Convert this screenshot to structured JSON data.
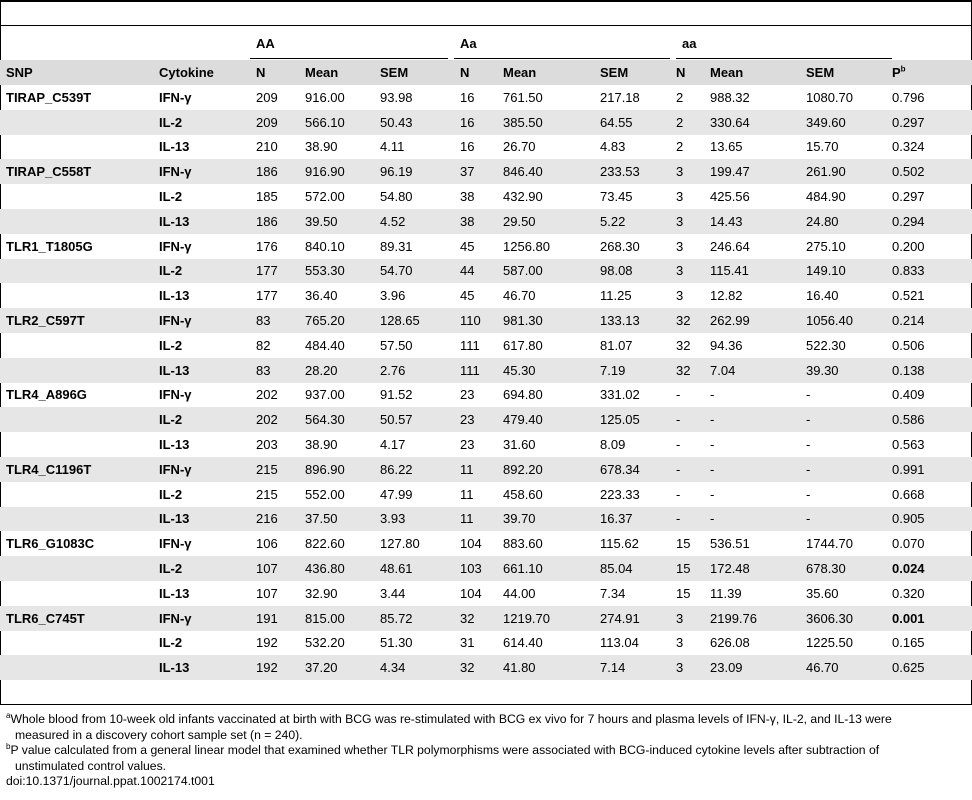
{
  "groups": {
    "AA": "AA",
    "Aa": "Aa",
    "aa": "aa"
  },
  "headers": {
    "snp": "SNP",
    "cytokine": "Cytokine",
    "n": "N",
    "mean": "Mean",
    "sem": "SEM",
    "p": "P",
    "p_sup": "b"
  },
  "rows": [
    {
      "snp": "TIRAP_C539T",
      "cytokine": "IFN-γ",
      "aa_n": "209",
      "aa_mean": "916.00",
      "aa_sem": "93.98",
      "ab_n": "16",
      "ab_mean": "761.50",
      "ab_sem": "217.18",
      "bb_n": "2",
      "bb_mean": "988.32",
      "bb_sem": "1080.70",
      "p": "0.796"
    },
    {
      "snp": "",
      "cytokine": "IL-2",
      "aa_n": "209",
      "aa_mean": "566.10",
      "aa_sem": "50.43",
      "ab_n": "16",
      "ab_mean": "385.50",
      "ab_sem": "64.55",
      "bb_n": "2",
      "bb_mean": "330.64",
      "bb_sem": "349.60",
      "p": "0.297"
    },
    {
      "snp": "",
      "cytokine": "IL-13",
      "aa_n": "210",
      "aa_mean": "38.90",
      "aa_sem": "4.11",
      "ab_n": "16",
      "ab_mean": "26.70",
      "ab_sem": "4.83",
      "bb_n": "2",
      "bb_mean": "13.65",
      "bb_sem": "15.70",
      "p": "0.324"
    },
    {
      "snp": "TIRAP_C558T",
      "cytokine": "IFN-γ",
      "aa_n": "186",
      "aa_mean": "916.90",
      "aa_sem": "96.19",
      "ab_n": "37",
      "ab_mean": "846.40",
      "ab_sem": "233.53",
      "bb_n": "3",
      "bb_mean": "199.47",
      "bb_sem": "261.90",
      "p": "0.502"
    },
    {
      "snp": "",
      "cytokine": "IL-2",
      "aa_n": "185",
      "aa_mean": "572.00",
      "aa_sem": "54.80",
      "ab_n": "38",
      "ab_mean": "432.90",
      "ab_sem": "73.45",
      "bb_n": "3",
      "bb_mean": "425.56",
      "bb_sem": "484.90",
      "p": "0.297"
    },
    {
      "snp": "",
      "cytokine": "IL-13",
      "aa_n": "186",
      "aa_mean": "39.50",
      "aa_sem": "4.52",
      "ab_n": "38",
      "ab_mean": "29.50",
      "ab_sem": "5.22",
      "bb_n": "3",
      "bb_mean": "14.43",
      "bb_sem": "24.80",
      "p": "0.294"
    },
    {
      "snp": "TLR1_T1805G",
      "cytokine": "IFN-γ",
      "aa_n": "176",
      "aa_mean": "840.10",
      "aa_sem": "89.31",
      "ab_n": "45",
      "ab_mean": "1256.80",
      "ab_sem": "268.30",
      "bb_n": "3",
      "bb_mean": "246.64",
      "bb_sem": "275.10",
      "p": "0.200"
    },
    {
      "snp": "",
      "cytokine": "IL-2",
      "aa_n": "177",
      "aa_mean": "553.30",
      "aa_sem": "54.70",
      "ab_n": "44",
      "ab_mean": "587.00",
      "ab_sem": "98.08",
      "bb_n": "3",
      "bb_mean": "115.41",
      "bb_sem": "149.10",
      "p": "0.833"
    },
    {
      "snp": "",
      "cytokine": "IL-13",
      "aa_n": "177",
      "aa_mean": "36.40",
      "aa_sem": "3.96",
      "ab_n": "45",
      "ab_mean": "46.70",
      "ab_sem": "11.25",
      "bb_n": "3",
      "bb_mean": "12.82",
      "bb_sem": "16.40",
      "p": "0.521"
    },
    {
      "snp": "TLR2_C597T",
      "cytokine": "IFN-γ",
      "aa_n": "83",
      "aa_mean": "765.20",
      "aa_sem": "128.65",
      "ab_n": "110",
      "ab_mean": "981.30",
      "ab_sem": "133.13",
      "bb_n": "32",
      "bb_mean": "262.99",
      "bb_sem": "1056.40",
      "p": "0.214"
    },
    {
      "snp": "",
      "cytokine": "IL-2",
      "aa_n": "82",
      "aa_mean": "484.40",
      "aa_sem": "57.50",
      "ab_n": "111",
      "ab_mean": "617.80",
      "ab_sem": "81.07",
      "bb_n": "32",
      "bb_mean": "94.36",
      "bb_sem": "522.30",
      "p": "0.506"
    },
    {
      "snp": "",
      "cytokine": "IL-13",
      "aa_n": "83",
      "aa_mean": "28.20",
      "aa_sem": "2.76",
      "ab_n": "111",
      "ab_mean": "45.30",
      "ab_sem": "7.19",
      "bb_n": "32",
      "bb_mean": "7.04",
      "bb_sem": "39.30",
      "p": "0.138"
    },
    {
      "snp": "TLR4_A896G",
      "cytokine": "IFN-γ",
      "aa_n": "202",
      "aa_mean": "937.00",
      "aa_sem": "91.52",
      "ab_n": "23",
      "ab_mean": "694.80",
      "ab_sem": "331.02",
      "bb_n": "-",
      "bb_mean": "-",
      "bb_sem": "-",
      "p": "0.409"
    },
    {
      "snp": "",
      "cytokine": "IL-2",
      "aa_n": "202",
      "aa_mean": "564.30",
      "aa_sem": "50.57",
      "ab_n": "23",
      "ab_mean": "479.40",
      "ab_sem": "125.05",
      "bb_n": "-",
      "bb_mean": "-",
      "bb_sem": "-",
      "p": "0.586"
    },
    {
      "snp": "",
      "cytokine": "IL-13",
      "aa_n": "203",
      "aa_mean": "38.90",
      "aa_sem": "4.17",
      "ab_n": "23",
      "ab_mean": "31.60",
      "ab_sem": "8.09",
      "bb_n": "-",
      "bb_mean": "-",
      "bb_sem": "-",
      "p": "0.563"
    },
    {
      "snp": "TLR4_C1196T",
      "cytokine": "IFN-γ",
      "aa_n": "215",
      "aa_mean": "896.90",
      "aa_sem": "86.22",
      "ab_n": "11",
      "ab_mean": "892.20",
      "ab_sem": "678.34",
      "bb_n": "-",
      "bb_mean": "-",
      "bb_sem": "-",
      "p": "0.991"
    },
    {
      "snp": "",
      "cytokine": "IL-2",
      "aa_n": "215",
      "aa_mean": "552.00",
      "aa_sem": "47.99",
      "ab_n": "11",
      "ab_mean": "458.60",
      "ab_sem": "223.33",
      "bb_n": "-",
      "bb_mean": "-",
      "bb_sem": "-",
      "p": "0.668"
    },
    {
      "snp": "",
      "cytokine": "IL-13",
      "aa_n": "216",
      "aa_mean": "37.50",
      "aa_sem": "3.93",
      "ab_n": "11",
      "ab_mean": "39.70",
      "ab_sem": "16.37",
      "bb_n": "-",
      "bb_mean": "-",
      "bb_sem": "-",
      "p": "0.905"
    },
    {
      "snp": "TLR6_G1083C",
      "cytokine": "IFN-γ",
      "aa_n": "106",
      "aa_mean": "822.60",
      "aa_sem": "127.80",
      "ab_n": "104",
      "ab_mean": "883.60",
      "ab_sem": "115.62",
      "bb_n": "15",
      "bb_mean": "536.51",
      "bb_sem": "1744.70",
      "p": "0.070"
    },
    {
      "snp": "",
      "cytokine": "IL-2",
      "aa_n": "107",
      "aa_mean": "436.80",
      "aa_sem": "48.61",
      "ab_n": "103",
      "ab_mean": "661.10",
      "ab_sem": "85.04",
      "bb_n": "15",
      "bb_mean": "172.48",
      "bb_sem": "678.30",
      "p": "0.024",
      "p_bold": true
    },
    {
      "snp": "",
      "cytokine": "IL-13",
      "aa_n": "107",
      "aa_mean": "32.90",
      "aa_sem": "3.44",
      "ab_n": "104",
      "ab_mean": "44.00",
      "ab_sem": "7.34",
      "bb_n": "15",
      "bb_mean": "11.39",
      "bb_sem": "35.60",
      "p": "0.320"
    },
    {
      "snp": "TLR6_C745T",
      "cytokine": "IFN-γ",
      "aa_n": "191",
      "aa_mean": "815.00",
      "aa_sem": "85.72",
      "ab_n": "32",
      "ab_mean": "1219.70",
      "ab_sem": "274.91",
      "bb_n": "3",
      "bb_mean": "2199.76",
      "bb_sem": "3606.30",
      "p": "0.001",
      "p_bold": true
    },
    {
      "snp": "",
      "cytokine": "IL-2",
      "aa_n": "192",
      "aa_mean": "532.20",
      "aa_sem": "51.30",
      "ab_n": "31",
      "ab_mean": "614.40",
      "ab_sem": "113.04",
      "bb_n": "3",
      "bb_mean": "626.08",
      "bb_sem": "1225.50",
      "p": "0.165"
    },
    {
      "snp": "",
      "cytokine": "IL-13",
      "aa_n": "192",
      "aa_mean": "37.20",
      "aa_sem": "4.34",
      "ab_n": "32",
      "ab_mean": "41.80",
      "ab_sem": "7.14",
      "bb_n": "3",
      "bb_mean": "23.09",
      "bb_sem": "46.70",
      "p": "0.625"
    }
  ],
  "footnotes": {
    "a_marker": "a",
    "a_line1": "Whole blood from 10-week old infants vaccinated at birth with BCG was re-stimulated with BCG ex vivo for 7 hours and plasma levels of IFN-γ, IL-2, and IL-13 were",
    "a_line2": "measured in a discovery cohort sample set (n = 240).",
    "b_marker": "b",
    "b_line1": "P value calculated from a general linear model that examined whether TLR polymorphisms were associated with BCG-induced cytokine levels after subtraction of",
    "b_line2": "unstimulated control values.",
    "doi": "doi:10.1371/journal.ppat.1002174.t001"
  }
}
